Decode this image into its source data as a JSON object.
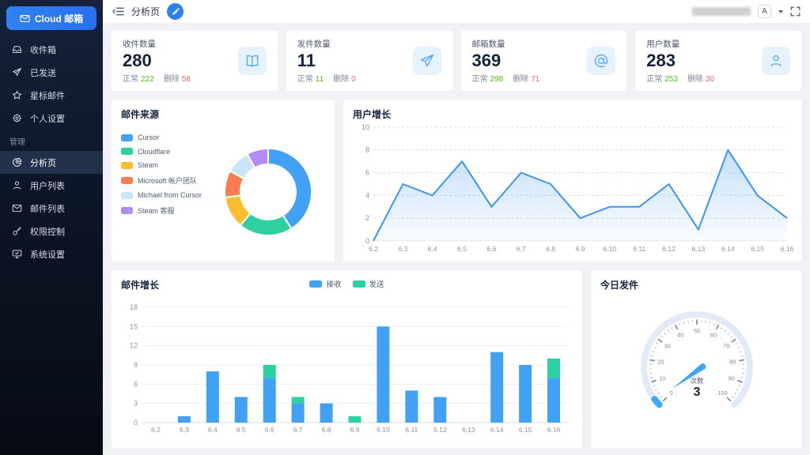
{
  "sidebar": {
    "logo": "Cloud 邮箱",
    "logo_icon": "envelope-icon",
    "items_top": [
      {
        "label": "收件箱",
        "icon": "inbox-icon"
      },
      {
        "label": "已发送",
        "icon": "paper-plane-icon"
      },
      {
        "label": "星标邮件",
        "icon": "star-icon"
      },
      {
        "label": "个人设置",
        "icon": "gear-icon"
      }
    ],
    "section_label": "管理",
    "items_admin": [
      {
        "label": "分析页",
        "icon": "pie-chart-icon",
        "active": true
      },
      {
        "label": "用户列表",
        "icon": "user-icon",
        "active": false
      },
      {
        "label": "邮件列表",
        "icon": "mail-icon",
        "active": false
      },
      {
        "label": "权限控制",
        "icon": "key-icon",
        "active": false
      },
      {
        "label": "系统设置",
        "icon": "monitor-icon",
        "active": false
      }
    ]
  },
  "header": {
    "title": "分析页",
    "fold_icon": "menu-fold-icon",
    "edit_icon": "pencil-icon",
    "avatar_letter": "A",
    "fullscreen_icon": "fullscreen-icon"
  },
  "stat_cards": [
    {
      "title": "收件数量",
      "value": "280",
      "normal_label": "正常",
      "normal_value": "222",
      "deleted_label": "删除",
      "deleted_value": "58",
      "icon": "open-book-icon"
    },
    {
      "title": "发件数量",
      "value": "11",
      "normal_label": "正常",
      "normal_value": "11",
      "deleted_label": "删除",
      "deleted_value": "0",
      "icon": "paper-plane-icon"
    },
    {
      "title": "邮箱数量",
      "value": "369",
      "normal_label": "正常",
      "normal_value": "298",
      "deleted_label": "删除",
      "deleted_value": "71",
      "icon": "at-icon"
    },
    {
      "title": "用户数量",
      "value": "283",
      "normal_label": "正常",
      "normal_value": "253",
      "deleted_label": "删除",
      "deleted_value": "30",
      "icon": "user-icon"
    }
  ],
  "colors": {
    "accent_blue": "#2e80f5",
    "ok_green": "#52c41a",
    "danger_red": "#f56c6c",
    "bar_blue": "#41a2f5",
    "bar_green": "#2bd0a4",
    "gauge_track": "#e3eaf7",
    "gauge_progress": "#3fa7f5"
  },
  "chart_data": [
    {
      "type": "pie",
      "title": "邮件来源",
      "labels": [
        "Cursor",
        "Cloudflare",
        "Steam",
        "Microsoft 帐户团队",
        "Michael from Cursor",
        "Steam 客服"
      ],
      "values": [
        41,
        20,
        12,
        10,
        9,
        8
      ],
      "colors": [
        "#41a2f5",
        "#2ed0a2",
        "#fbbe2f",
        "#fa7d50",
        "#c9e5fa",
        "#b28cf6"
      ],
      "legend_position": "left",
      "donut": true
    },
    {
      "type": "area",
      "title": "用户增长",
      "x": [
        "6.2",
        "6.3",
        "6.4",
        "6.5",
        "6.6",
        "6.7",
        "6.8",
        "6.9",
        "6.10",
        "6.11",
        "6.12",
        "6.13",
        "6.14",
        "6.15",
        "6.16"
      ],
      "values": [
        0,
        5,
        4,
        7,
        3,
        6,
        5,
        2,
        3,
        3,
        5,
        1,
        8,
        4,
        2
      ],
      "ylim": [
        0,
        10
      ],
      "yticks": [
        0,
        2,
        4,
        6,
        8,
        10
      ],
      "line_color": "#3d95f0",
      "grid": "dashed"
    },
    {
      "type": "bar",
      "title": "邮件增长",
      "stacked": true,
      "categories": [
        "6.2",
        "6.3",
        "6.4",
        "6.5",
        "6.6",
        "6.7",
        "6.8",
        "6.9",
        "6.10",
        "6.11",
        "6.12",
        "6.13",
        "6.14",
        "6.15",
        "6.16"
      ],
      "series": [
        {
          "name": "接收",
          "color": "#41a2f5",
          "values": [
            0,
            1,
            8,
            4,
            7,
            3,
            3,
            0,
            15,
            5,
            4,
            0,
            11,
            9,
            7
          ]
        },
        {
          "name": "发送",
          "color": "#2bd0a4",
          "values": [
            0,
            0,
            0,
            0,
            2,
            1,
            0,
            1,
            0,
            0,
            0,
            0,
            0,
            0,
            3
          ]
        }
      ],
      "ylim": [
        0,
        18
      ],
      "yticks": [
        0,
        3,
        6,
        9,
        12,
        15,
        18
      ],
      "legend_position": "top-center"
    },
    {
      "type": "gauge",
      "title": "今日发件",
      "value": 3,
      "value_label": "3",
      "unit_label": "次数",
      "min": 0,
      "max": 100,
      "tick_labels": [
        "0",
        "10",
        "20",
        "30",
        "40",
        "50",
        "60",
        "70",
        "80",
        "90",
        "100"
      ]
    }
  ]
}
